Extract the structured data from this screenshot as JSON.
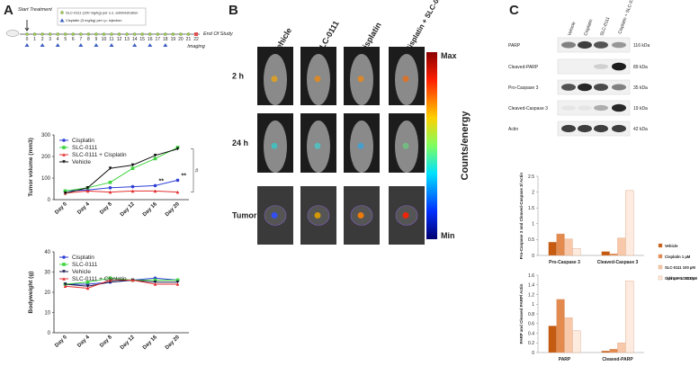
{
  "panel_labels": [
    "A",
    "B",
    "C"
  ],
  "timeline": {
    "start": "Start Treatment",
    "end": "End Of Study",
    "imaging": "Imaging",
    "legend": [
      "SLC-0111 (100 mg/kg) per o.s. administration",
      "Cisplatin (3 mg/kg) per i.p. injection"
    ],
    "days": [
      0,
      1,
      2,
      3,
      4,
      5,
      6,
      7,
      8,
      9,
      10,
      11,
      12,
      13,
      14,
      15,
      16,
      17,
      18,
      19,
      20,
      21,
      22
    ],
    "cisplatin_days": [
      0,
      2,
      4,
      7,
      9,
      11,
      14,
      16,
      18
    ]
  },
  "chart_data": [
    {
      "type": "line",
      "y_label": "Tumor volume (mm3)",
      "legend_position": "upper left",
      "categories": [
        "Day 0",
        "Day 4",
        "Day 8",
        "Day 12",
        "Day 16",
        "Day 20"
      ],
      "ylim": [
        0,
        300
      ],
      "yticks": [
        0,
        100,
        200,
        300
      ],
      "series": [
        {
          "name": "Cisplatin",
          "color": "#2f3fd6",
          "marker": "circle",
          "values": [
            40,
            45,
            55,
            60,
            65,
            90
          ]
        },
        {
          "name": "SLC-0111",
          "color": "#3ed43e",
          "marker": "square",
          "values": [
            40,
            55,
            80,
            145,
            190,
            242
          ]
        },
        {
          "name": "SLC-0111 + Cisplatin",
          "color": "#e53030",
          "marker": "triangle",
          "values": [
            30,
            40,
            35,
            40,
            40,
            35
          ]
        },
        {
          "name": "Vehicle",
          "color": "#111111",
          "marker": "triangle-down",
          "values": [
            30,
            55,
            145,
            160,
            205,
            235
          ]
        }
      ],
      "annotations": [
        {
          "text": "**",
          "x": "Day 16"
        },
        {
          "text": "**",
          "x": "Day 20"
        },
        {
          "text": "#"
        }
      ]
    },
    {
      "type": "line",
      "y_label": "Bodyweight (g)",
      "legend_position": "upper left",
      "categories": [
        "Day 0",
        "Day 4",
        "Day 8",
        "Day 12",
        "Day 16",
        "Day 20"
      ],
      "ylim": [
        0,
        40
      ],
      "yticks": [
        0,
        10,
        20,
        30,
        40
      ],
      "series": [
        {
          "name": "Cisplatin",
          "color": "#2f3fd6",
          "marker": "circle",
          "values": [
            24,
            24,
            25,
            26,
            27,
            26
          ]
        },
        {
          "name": "SLC-0111",
          "color": "#3ed43e",
          "marker": "square",
          "values": [
            24,
            25,
            27,
            26,
            26,
            26
          ]
        },
        {
          "name": "Vehicle",
          "color": "#1a1a4a",
          "marker": "triangle-down",
          "values": [
            24,
            23,
            25,
            26,
            25,
            25
          ]
        },
        {
          "name": "SLC-0111 + Cisplatin",
          "color": "#e53030",
          "marker": "triangle",
          "values": [
            23,
            22,
            26,
            26,
            24,
            24
          ]
        }
      ]
    },
    {
      "type": "bar",
      "y_label": "Pro-Caspase 3 and Cleaved-Caspase 3/ Actin",
      "categories": [
        "Pro-Caspase 3",
        "Cleaved-Caspase 3"
      ],
      "ylim": [
        0,
        2.5
      ],
      "yticks": [
        0,
        0.5,
        1,
        1.5,
        2,
        2.5
      ],
      "series": [
        {
          "name": "Vehicle",
          "color": "#c55a11",
          "values": [
            0.42,
            0.12
          ]
        },
        {
          "name": "Cisplatin 1 µM",
          "color": "#e38a4f",
          "values": [
            0.68,
            0.05
          ]
        },
        {
          "name": "SLC-0111 100 µM",
          "color": "#f7c9aa",
          "values": [
            0.52,
            0.55
          ]
        },
        {
          "name": "Cisplatin 1 µM + SLC-0111 100 µM",
          "color": "#fdebe0",
          "values": [
            0.22,
            2.05
          ]
        }
      ]
    },
    {
      "type": "bar",
      "y_label": "PARP and Cleaved PARP/ Actin",
      "categories": [
        "PARP",
        "Cleaved-PARP"
      ],
      "ylim": [
        0,
        1.6
      ],
      "yticks": [
        0,
        0.2,
        0.4,
        0.6,
        0.8,
        1,
        1.2,
        1.4,
        1.6
      ],
      "series": [
        {
          "color": "#c55a11",
          "values": [
            0.55,
            0.03
          ]
        },
        {
          "color": "#e38a4f",
          "values": [
            1.1,
            0.07
          ]
        },
        {
          "color": "#f7c9aa",
          "values": [
            0.72,
            0.2
          ]
        },
        {
          "color": "#fdebe0",
          "values": [
            0.45,
            1.48
          ]
        }
      ]
    }
  ],
  "imaging": {
    "columns": [
      "Vehicle",
      "SLC-0111",
      "Cisplatin",
      "Cisplatin + SLC-0111"
    ],
    "rows": [
      "2 h",
      "24 h",
      "Tumor"
    ],
    "colorbar": {
      "label": "Counts/energy",
      "max": "Max",
      "min": "Min"
    }
  },
  "western_blot": {
    "lanes": [
      "Vehicle",
      "Cisplatin",
      "SLC-0111",
      "Cisplatin + SLC-0111"
    ],
    "bands": [
      {
        "name": "PARP",
        "size": "116 kDa"
      },
      {
        "name": "Cleaved-PARP",
        "size": "89 kDa"
      },
      {
        "name": "Pro-Caspase 3",
        "size": "35 kDa"
      },
      {
        "name": "Cleaved-Caspase 3",
        "size": "19 kDa"
      },
      {
        "name": "Actin",
        "size": "42 kDa"
      }
    ]
  }
}
